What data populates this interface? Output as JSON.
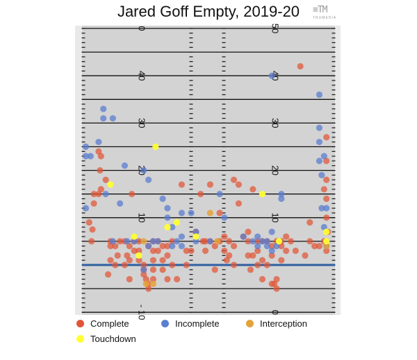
{
  "title": "Jared Goff Empty, 2019-20",
  "logo": {
    "text": "TRUMEDIA"
  },
  "colors": {
    "field": "#d3d3d3",
    "field_border": "#e9e9e9",
    "line": "#111111",
    "los": "#2e5fa0",
    "complete": "#e05536",
    "incomplete": "#5b7ed0",
    "interception": "#e4a23a",
    "touchdown": "#ffff33"
  },
  "legend": [
    {
      "label": "Complete",
      "key": "complete"
    },
    {
      "label": "Incomplete",
      "key": "incomplete"
    },
    {
      "label": "Interception",
      "key": "interception"
    },
    {
      "label": "Touchdown",
      "key": "touchdown"
    }
  ],
  "chart_data": {
    "type": "scatter",
    "xlabel": "",
    "ylabel": "",
    "xlim": [
      0,
      53.3
    ],
    "ylim": [
      -10,
      53
    ],
    "line_of_scrimmage": 0,
    "yard_numbers_left": [
      "0",
      "40",
      "30",
      "20",
      "10",
      "- 10"
    ],
    "yard_numbers_right": [
      "50",
      "40",
      "30",
      "20",
      "10",
      "0"
    ],
    "series": [
      {
        "name": "Complete",
        "points": [
          [
            2,
            5
          ],
          [
            2.2,
            7.5
          ],
          [
            1.5,
            9
          ],
          [
            2.5,
            13
          ],
          [
            2.5,
            15
          ],
          [
            3.5,
            15
          ],
          [
            4,
            16
          ],
          [
            3.5,
            24
          ],
          [
            4,
            23
          ],
          [
            3.8,
            20
          ],
          [
            5,
            18
          ],
          [
            6,
            4
          ],
          [
            6,
            1
          ],
          [
            5.5,
            -2
          ],
          [
            6,
            5
          ],
          [
            7,
            4
          ],
          [
            7.5,
            2
          ],
          [
            7,
            0
          ],
          [
            8,
            5
          ],
          [
            9,
            5
          ],
          [
            9,
            0
          ],
          [
            9.5,
            2
          ],
          [
            10,
            1
          ],
          [
            10,
            -3
          ],
          [
            10,
            4
          ],
          [
            10.5,
            15
          ],
          [
            11,
            5
          ],
          [
            11,
            3
          ],
          [
            12,
            5
          ],
          [
            12,
            3
          ],
          [
            12,
            1
          ],
          [
            13,
            0
          ],
          [
            13,
            -1
          ],
          [
            13,
            -2
          ],
          [
            13.5,
            -3
          ],
          [
            14,
            4
          ],
          [
            14,
            -4
          ],
          [
            14,
            -5
          ],
          [
            15,
            5
          ],
          [
            15,
            3
          ],
          [
            15,
            1
          ],
          [
            15,
            -1
          ],
          [
            15,
            -3
          ],
          [
            16,
            5
          ],
          [
            16,
            3
          ],
          [
            17,
            4
          ],
          [
            17,
            1
          ],
          [
            17,
            -1
          ],
          [
            18,
            4
          ],
          [
            18,
            2
          ],
          [
            18,
            -3
          ],
          [
            19,
            5
          ],
          [
            19,
            0
          ],
          [
            20,
            -3
          ],
          [
            21,
            17
          ],
          [
            22,
            3
          ],
          [
            22,
            0
          ],
          [
            23,
            3
          ],
          [
            24,
            7
          ],
          [
            25,
            15
          ],
          [
            25.5,
            5
          ],
          [
            26,
            3
          ],
          [
            26,
            5
          ],
          [
            27,
            17
          ],
          [
            27,
            5
          ],
          [
            28,
            4
          ],
          [
            28,
            -1
          ],
          [
            29,
            11
          ],
          [
            29,
            5
          ],
          [
            30,
            6
          ],
          [
            30,
            3
          ],
          [
            30.5,
            1
          ],
          [
            31,
            5
          ],
          [
            31,
            2
          ],
          [
            32,
            18
          ],
          [
            32,
            0
          ],
          [
            32,
            4
          ],
          [
            33,
            13
          ],
          [
            33,
            17
          ],
          [
            34,
            6
          ],
          [
            35,
            7
          ],
          [
            35,
            5
          ],
          [
            35,
            2
          ],
          [
            35.5,
            -1
          ],
          [
            36,
            16
          ],
          [
            36,
            2
          ],
          [
            37,
            5
          ],
          [
            37,
            0
          ],
          [
            37,
            3
          ],
          [
            38,
            -3
          ],
          [
            38,
            5
          ],
          [
            38,
            1
          ],
          [
            39,
            5
          ],
          [
            39,
            0
          ],
          [
            40,
            4
          ],
          [
            40,
            2
          ],
          [
            40,
            -4
          ],
          [
            40.5,
            -4
          ],
          [
            41,
            -5
          ],
          [
            41,
            -3
          ],
          [
            41,
            5
          ],
          [
            42,
            5
          ],
          [
            42,
            4
          ],
          [
            42,
            1
          ],
          [
            43,
            6
          ],
          [
            43,
            3
          ],
          [
            44,
            5
          ],
          [
            45,
            3
          ],
          [
            46,
            42
          ],
          [
            47,
            2
          ],
          [
            48,
            9
          ],
          [
            48,
            5
          ],
          [
            49,
            4
          ],
          [
            50,
            4
          ],
          [
            51,
            16
          ],
          [
            51.5,
            14
          ],
          [
            51.5,
            10
          ],
          [
            51.5,
            18
          ],
          [
            51.5,
            22
          ],
          [
            51.5,
            27
          ],
          [
            51.8,
            7
          ],
          [
            51,
            5
          ],
          [
            51.5,
            3
          ]
        ]
      },
      {
        "name": "Incomplete",
        "points": [
          [
            0.8,
            12
          ],
          [
            0.8,
            25
          ],
          [
            0.8,
            23
          ],
          [
            1.8,
            23
          ],
          [
            3.5,
            26
          ],
          [
            4.5,
            33
          ],
          [
            4.5,
            31
          ],
          [
            6.5,
            31
          ],
          [
            5,
            15
          ],
          [
            6.5,
            5
          ],
          [
            8,
            13
          ],
          [
            9,
            21
          ],
          [
            9.5,
            5
          ],
          [
            11,
            5
          ],
          [
            13,
            20
          ],
          [
            13,
            -1
          ],
          [
            14,
            18
          ],
          [
            15,
            5
          ],
          [
            16,
            5
          ],
          [
            17,
            14
          ],
          [
            18,
            12
          ],
          [
            18,
            10
          ],
          [
            19,
            8
          ],
          [
            19,
            4
          ],
          [
            20,
            5
          ],
          [
            21,
            4
          ],
          [
            21,
            6
          ],
          [
            21,
            11
          ],
          [
            23,
            11
          ],
          [
            24,
            7
          ],
          [
            24,
            5
          ],
          [
            27,
            5
          ],
          [
            29,
            15
          ],
          [
            30,
            10
          ],
          [
            34,
            6
          ],
          [
            36,
            5
          ],
          [
            37,
            6
          ],
          [
            38,
            5
          ],
          [
            39,
            5
          ],
          [
            39,
            4
          ],
          [
            40,
            7
          ],
          [
            40,
            40
          ],
          [
            41,
            4
          ],
          [
            42,
            15
          ],
          [
            42,
            14
          ],
          [
            50,
            36
          ],
          [
            50,
            29
          ],
          [
            50,
            26
          ],
          [
            50,
            22
          ],
          [
            50.5,
            19
          ],
          [
            50.5,
            12
          ],
          [
            51,
            23
          ],
          [
            51,
            8
          ],
          [
            51.5,
            4
          ],
          [
            51.5,
            12
          ],
          [
            40,
            3
          ],
          [
            14,
            4
          ],
          [
            37,
            4
          ]
        ]
      },
      {
        "name": "Interception",
        "points": [
          [
            13,
            5
          ],
          [
            13.5,
            -4
          ],
          [
            15,
            -4
          ],
          [
            27,
            11
          ],
          [
            28.5,
            5
          ],
          [
            51.5,
            4
          ]
        ]
      },
      {
        "name": "Touchdown",
        "points": [
          [
            6,
            17
          ],
          [
            11,
            6
          ],
          [
            12,
            2
          ],
          [
            15.5,
            25
          ],
          [
            18,
            8
          ],
          [
            20,
            9
          ],
          [
            24,
            6
          ],
          [
            38,
            15
          ],
          [
            41.5,
            5
          ],
          [
            51.5,
            7
          ],
          [
            51.5,
            5
          ]
        ]
      }
    ]
  }
}
